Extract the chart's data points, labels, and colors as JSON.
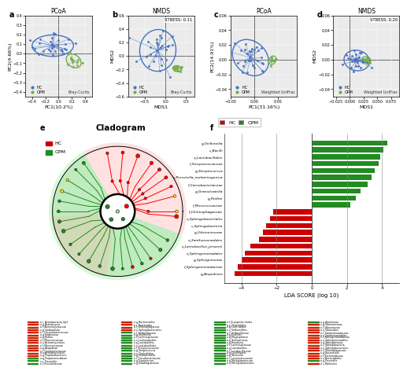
{
  "panel_labels": [
    "a",
    "b",
    "c",
    "d",
    "e",
    "f"
  ],
  "hc_color": "#4472C4",
  "opm_color": "#70AD47",
  "pcoa_bc_title": "PCoA",
  "pcoa_bc_xlabel": "PC1(10.2%)",
  "pcoa_bc_ylabel": "PC2(4.66%)",
  "pcoa_bc_xlim": [
    -0.5,
    0.5
  ],
  "pcoa_bc_ylim": [
    -0.45,
    0.4
  ],
  "nmds_bc_title": "NMDS",
  "nmds_bc_stress": "STRESS: 0.11",
  "nmds_bc_xlabel": "MDS1",
  "nmds_bc_ylabel": "MDS2",
  "nmds_bc_xlim": [
    -0.9,
    0.7
  ],
  "nmds_bc_ylim": [
    -0.6,
    0.6
  ],
  "pcoa_wu_title": "PCoA",
  "pcoa_wu_xlabel": "PC1(31.16%)",
  "pcoa_wu_ylabel": "PC2(14.91%)",
  "pcoa_wu_xlim": [
    -0.05,
    0.09
  ],
  "pcoa_wu_ylim": [
    -0.05,
    0.06
  ],
  "nmds_wu_title": "NMDS",
  "nmds_wu_stress": "STRESS: 0.20",
  "nmds_wu_xlabel": "MDS1",
  "nmds_wu_ylabel": "MDS2",
  "nmds_wu_xlim": [
    -0.03,
    0.09
  ],
  "nmds_wu_ylim": [
    -0.05,
    0.06
  ],
  "cladogram_title": "Cladogram",
  "lefse_taxa_opm": [
    "g_Veillonella",
    "c_Bacilli",
    "o_Lactobacillales",
    "f_Streptococcaceae",
    "g_Streptococcus",
    "s_Prevotella_melaninogenica",
    "f_Carnobacteriaceae",
    "g_Granulicatella",
    "g_Rothia",
    "f_Micrococcaceae"
  ],
  "lefse_values_opm": [
    4.3,
    4.1,
    3.9,
    3.8,
    3.6,
    3.4,
    3.2,
    2.8,
    2.5,
    2.2
  ],
  "lefse_taxa_hc": [
    "f_Chitinophagaceae",
    "o_Sphingobacteriales",
    "c_Sphingobacteria",
    "g_Vibrionimonas",
    "o_Xanthomonadales",
    "s_Lactobacillus_jensenii",
    "o_Sphingomonadales",
    "g_Sphingomonas",
    "f_Sphingomonadaceae",
    "g_Atopobium"
  ],
  "lefse_values_hc": [
    2.2,
    2.4,
    2.6,
    2.8,
    3.0,
    3.5,
    3.8,
    4.0,
    4.2,
    4.4
  ],
  "lefse_xlabel": "LDA SCORE (log 10)",
  "bg_color": "#FFFFFF",
  "scatter_bg": "#EBEBEB",
  "bottom_legend_cols": [
    [
      "a c_Actinobacteria_Gp3",
      "a g_Actinomyces",
      "a f_Actinomycetaceae",
      "a g_Varibaculum",
      "a f_Corynebacteriaceae",
      "a g_Nadimonas",
      "a g_Rothia",
      "a f_Micrococcaceae",
      "a o_Actinomycetales",
      "a f_Micrococcaceae",
      "a g_Atopobium",
      "a f_Coriobacteriaceae",
      "a o_Actinomycetales",
      "a g_Propionibacterium",
      "a g_Propionimicrobium",
      "a c_Prevotella",
      "a f_Prevotellaceae"
    ],
    [
      "a g_Bacteroidales",
      "a c_Bacteroidia",
      "a f_Chitinophagaceae",
      "a o_Sphingobacteriales",
      "a f_Veillonellaceae",
      "a g_Veillonella",
      "a f_Lachnospiraceae",
      "a o_Lachnospirales",
      "a g_Lactobacillus",
      "a o_Lactobacillales",
      "a f_Streptococcaceae",
      "a g_Streptococcus",
      "a o_Clostridiales",
      "a g_Granulicatella",
      "a f_Carnobacteriaceae",
      "a g_Eubacterium",
      "a g_Subdoligranulum"
    ],
    [
      "a f_Erysipelotrichales",
      "a o_Clostridiales",
      "a g_Clostridiales",
      "a o_Veillonellales",
      "a f_Veillonellaceae",
      "a g_Dialister",
      "a g_Megasphaera",
      "a g_Selenomonas",
      "a g_Roseburia",
      "a f_Lachnospiraceae",
      "a g_Lactobacillus",
      "a f_Lactobacillaceae",
      "a g_Leuconostoc",
      "a g_Weissella",
      "a f_Leuconostocaceae",
      "a g_Methylobacterium",
      "a o_Methylobacteriales"
    ],
    [
      "a g_Aeromonas",
      "a g_Vibrionimonas",
      "a f_Vibrionaceae",
      "a o_Vibrionales",
      "a f_Xanthomonadaceae",
      "a o_Xanthomonadales",
      "a f_Sphingomonadaceae",
      "a o_Sphingomonadales",
      "a g_Sphingomonas",
      "a c_Sphingobacteria",
      "a o_Sphingobacteriales",
      "a f_Chitinophagaceae",
      "a g_Bacteroides",
      "a f_Bacteroidaceae",
      "a o_Bacteroidales",
      "a g_Prevotella",
      "a c_Mollicutes"
    ]
  ],
  "bottom_legend_colors_hc": [
    "#8B0000",
    "#CC0000",
    "#FF3333",
    "#FF6666",
    "#FF9999"
  ],
  "bottom_legend_colors_opm": [
    "#006400",
    "#228B22",
    "#32CD32",
    "#7CFC00",
    "#ADFF2F"
  ]
}
